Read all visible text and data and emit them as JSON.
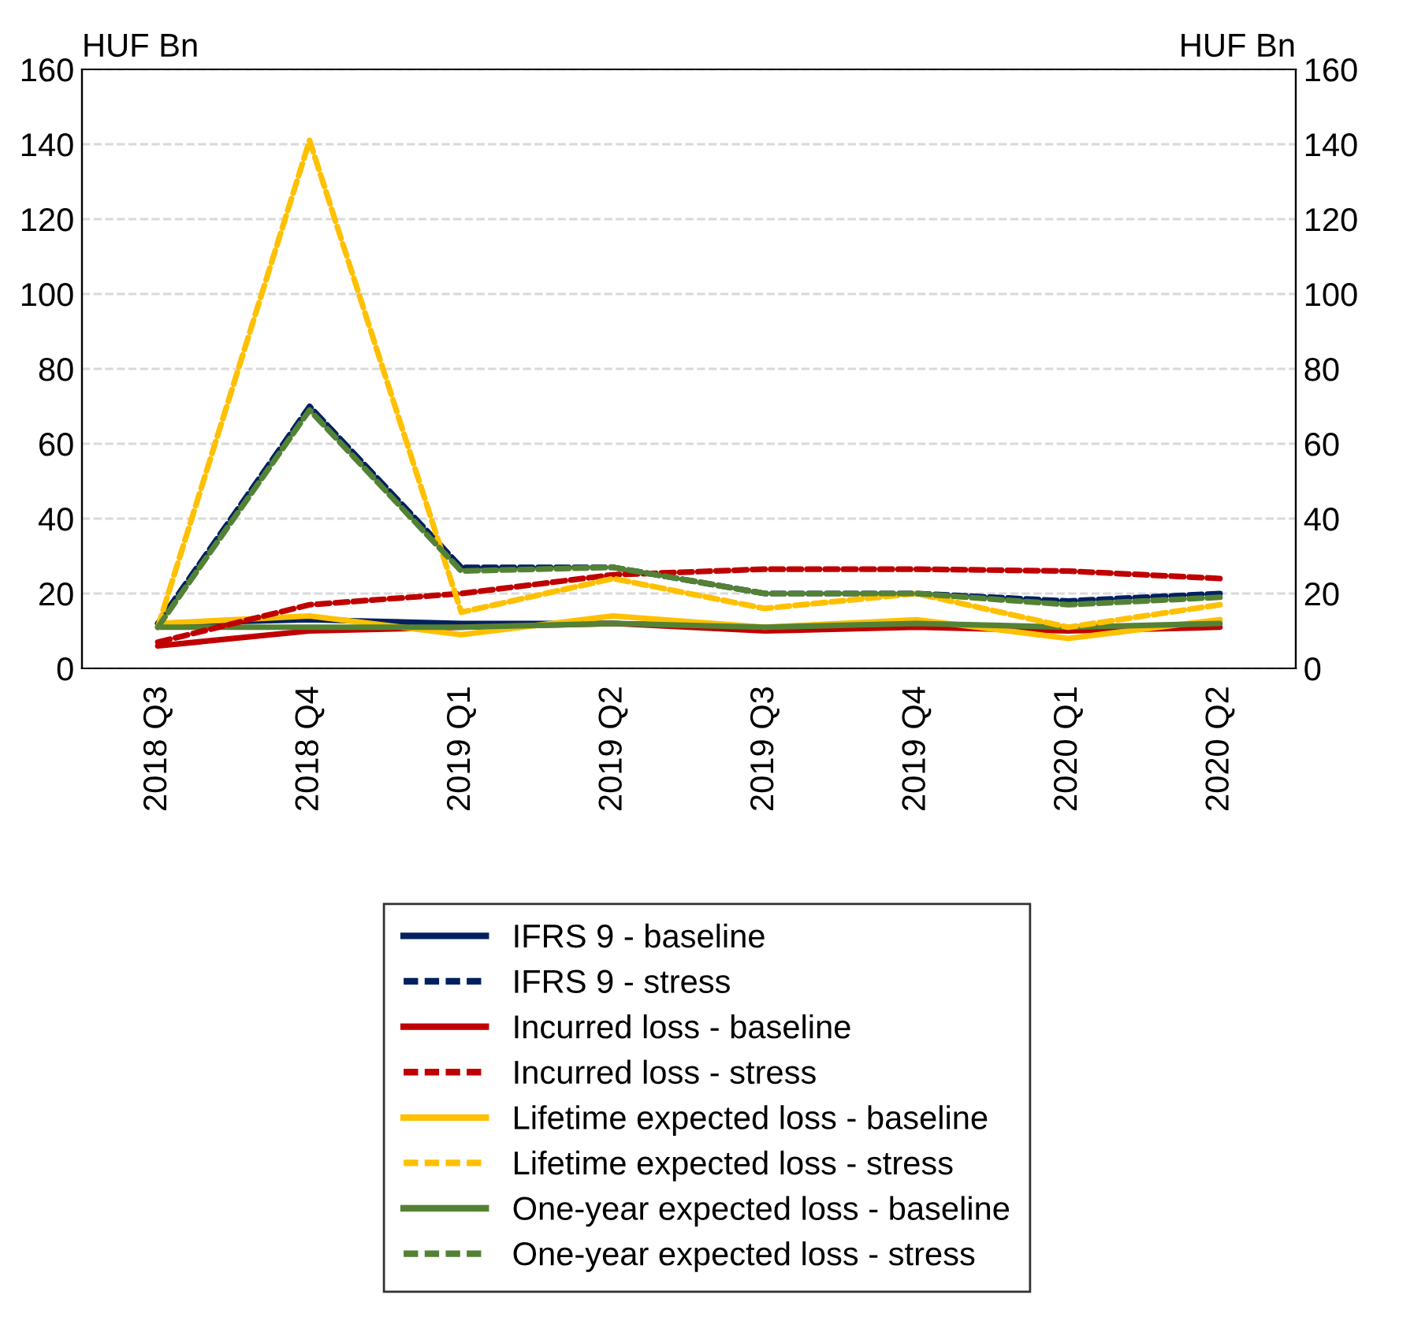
{
  "chart_data": {
    "type": "line",
    "ylabel": "HUF Bn",
    "y2label": "HUF Bn",
    "categories": [
      "2018 Q3",
      "2018 Q4",
      "2019 Q1",
      "2019 Q2",
      "2019 Q3",
      "2019 Q4",
      "2020 Q1",
      "2020 Q2"
    ],
    "series": [
      {
        "name": "IFRS 9 - baseline",
        "color": "#002060",
        "line_style": "solid",
        "values": [
          12,
          13,
          12,
          12,
          11,
          null,
          null,
          null
        ]
      },
      {
        "name": "IFRS 9 - stress",
        "color": "#002060",
        "line_style": "dashed",
        "values": [
          12,
          70,
          27,
          27,
          20,
          20,
          18,
          20
        ]
      },
      {
        "name": "Incurred loss - baseline",
        "color": "#c00000",
        "line_style": "solid",
        "values": [
          6,
          10,
          11,
          12,
          10,
          11,
          10,
          11
        ]
      },
      {
        "name": "Incurred loss - stress",
        "color": "#c00000",
        "line_style": "dashed",
        "values": [
          7,
          17,
          20,
          25,
          26.5,
          26.5,
          26,
          24
        ]
      },
      {
        "name": "Lifetime expected loss - baseline",
        "color": "#ffc000",
        "line_style": "solid",
        "values": [
          12,
          14,
          9,
          14,
          11,
          13,
          8,
          13
        ]
      },
      {
        "name": "Lifetime expected loss - stress",
        "color": "#ffc000",
        "line_style": "dashed",
        "values": [
          11,
          141,
          15,
          24,
          16,
          20,
          11,
          17
        ]
      },
      {
        "name": "One-year expected loss - baseline",
        "color": "#548235",
        "line_style": "solid",
        "values": [
          11,
          11,
          11,
          12,
          11,
          12,
          11,
          12
        ]
      },
      {
        "name": "One-year expected loss - stress",
        "color": "#548235",
        "line_style": "dashed",
        "values": [
          11,
          69,
          26,
          27,
          20,
          20,
          17,
          19
        ]
      }
    ],
    "ylim": [
      0,
      160
    ],
    "yticks": [
      0,
      20,
      40,
      60,
      80,
      100,
      120,
      140,
      160
    ],
    "y2lim": [
      0,
      160
    ],
    "y2ticks": [
      0,
      20,
      40,
      60,
      80,
      100,
      120,
      140,
      160
    ],
    "grid": "y",
    "legend": "bottom",
    "marker": "none"
  }
}
